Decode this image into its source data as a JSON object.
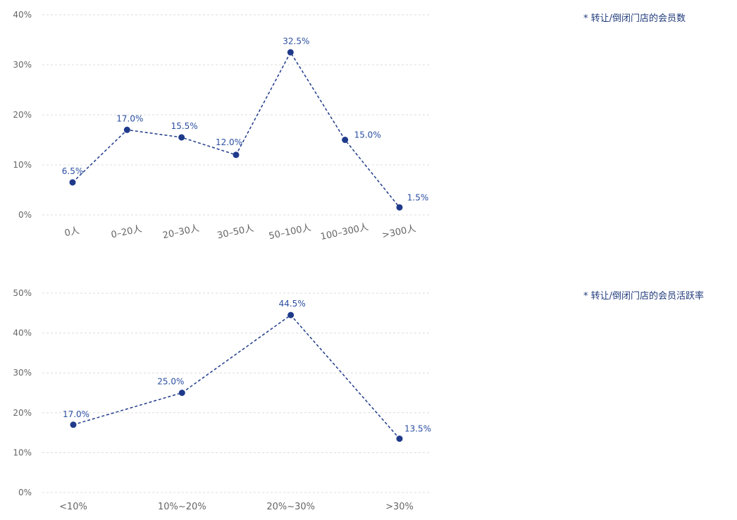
{
  "colors": {
    "series": "#1f3a8a",
    "label": "#2b4fa0",
    "grid": "#dcdcdc",
    "tick": "#666666"
  },
  "chart_data": [
    {
      "type": "line",
      "note": "* 转让/倒闭门店的会员数",
      "categories": [
        "0人",
        "0–20人",
        "20–30人",
        "30–50人",
        "50–100人",
        "100–300人",
        ">300人"
      ],
      "values": [
        6.5,
        17.0,
        15.5,
        12.0,
        32.5,
        15.0,
        1.5
      ],
      "value_labels": [
        "6.5%",
        "17.0%",
        "15.5%",
        "12.0%",
        "32.5%",
        "15.0%",
        "1.5%"
      ],
      "yticks": [
        "0%",
        "10%",
        "20%",
        "30%",
        "40%"
      ],
      "ylim": [
        0,
        40
      ],
      "grid": true,
      "line_style": "dashed"
    },
    {
      "type": "line",
      "note": "* 转让/倒闭门店的会员活跃率",
      "categories": [
        "<10%",
        "10%~20%",
        "20%~30%",
        ">30%"
      ],
      "values": [
        17.0,
        25.0,
        44.5,
        13.5
      ],
      "value_labels": [
        "17.0%",
        "25.0%",
        "44.5%",
        "13.5%"
      ],
      "yticks": [
        "0%",
        "10%",
        "20%",
        "30%",
        "40%",
        "50%"
      ],
      "ylim": [
        0,
        50
      ],
      "grid": true,
      "line_style": "dashed"
    }
  ]
}
